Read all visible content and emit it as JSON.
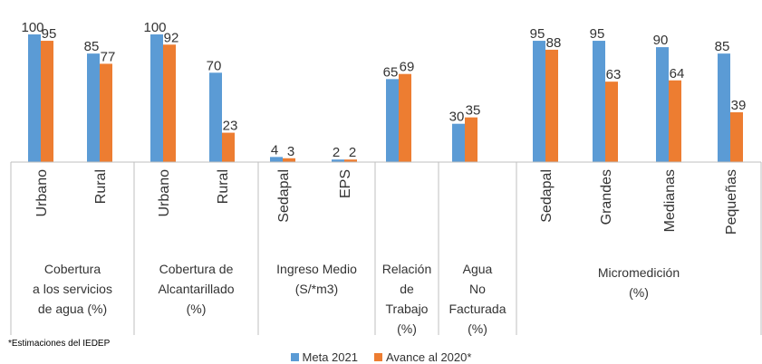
{
  "chart_data": {
    "type": "bar",
    "subcategories": [
      "Urbano",
      "Rural",
      "Urbano",
      "Rural",
      "Sedapal",
      "EPS",
      "",
      "",
      "Sedapal",
      "Grandes",
      "Medianas",
      "Pequeñas"
    ],
    "groups": [
      {
        "label": [
          "Cobertura",
          "a los servicios",
          "de agua (%)"
        ],
        "span": [
          0,
          1
        ]
      },
      {
        "label": [
          "Cobertura de",
          "Alcantarillado",
          "(%)"
        ],
        "span": [
          2,
          3
        ]
      },
      {
        "label": [
          "Ingreso Medio",
          "(S/*m3)"
        ],
        "span": [
          4,
          5
        ]
      },
      {
        "label": [
          "Relación",
          "de",
          "Trabajo",
          "(%)"
        ],
        "span": [
          6,
          6
        ]
      },
      {
        "label": [
          "Agua",
          "No",
          "Facturada",
          "(%)"
        ],
        "span": [
          7,
          7
        ]
      },
      {
        "label": [
          "Micromedición",
          "(%)"
        ],
        "span": [
          8,
          11
        ]
      }
    ],
    "series": [
      {
        "name": "Meta 2021",
        "color": "#5B9BD5",
        "values": [
          100,
          85,
          100,
          70,
          4,
          2,
          65,
          30,
          95,
          95,
          90,
          85
        ]
      },
      {
        "name": "Avance al 2020*",
        "color": "#ED7D31",
        "values": [
          95,
          77,
          92,
          23,
          3,
          2,
          69,
          35,
          88,
          63,
          64,
          39
        ]
      }
    ],
    "ylim": [
      0,
      100
    ],
    "grid": false,
    "legend_position": "bottom"
  },
  "footnote": "*Estimaciones del IEDEP",
  "legend": {
    "meta": "Meta 2021",
    "avance": "Avance al 2020*"
  }
}
